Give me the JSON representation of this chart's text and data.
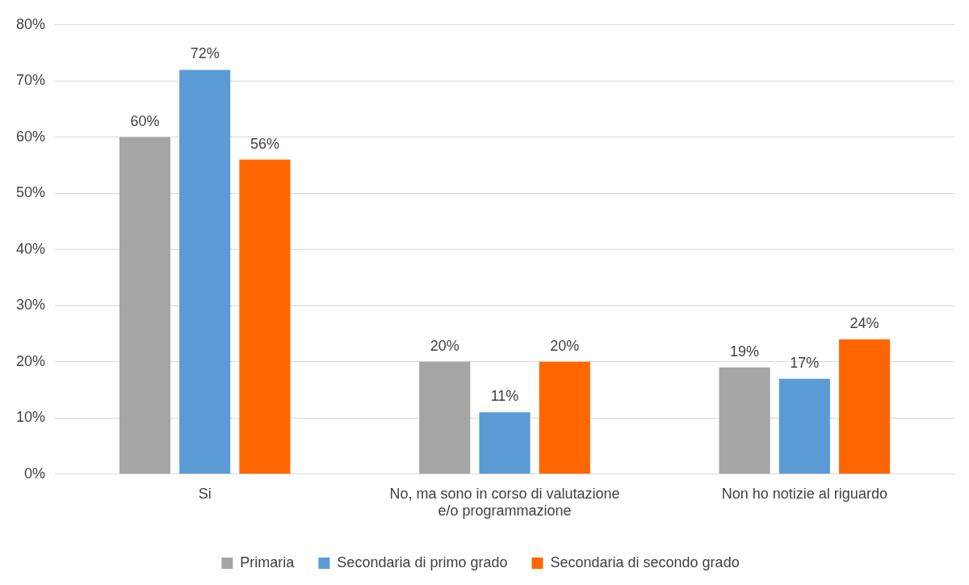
{
  "chart_data": {
    "type": "bar",
    "categories": [
      "Si",
      "No, ma sono in corso di valutazione e/o programmazione",
      "Non ho notizie al riguardo"
    ],
    "series": [
      {
        "name": "Primaria",
        "color": "#a5a5a5",
        "values": [
          60,
          20,
          19
        ],
        "value_labels": [
          "60%",
          "20%",
          "19%"
        ]
      },
      {
        "name": "Secondaria di primo grado",
        "color": "#5b9bd5",
        "values": [
          72,
          11,
          17
        ],
        "value_labels": [
          "72%",
          "11%",
          "17%"
        ]
      },
      {
        "name": "Secondaria di secondo grado",
        "color": "#ff6600",
        "values": [
          56,
          20,
          24
        ],
        "value_labels": [
          "56%",
          "20%",
          "24%"
        ]
      }
    ],
    "ylim": [
      0,
      80
    ],
    "yticks": [
      {
        "value": 0,
        "label": "0%"
      },
      {
        "value": 10,
        "label": "10%"
      },
      {
        "value": 20,
        "label": "20%"
      },
      {
        "value": 30,
        "label": "30%"
      },
      {
        "value": 40,
        "label": "40%"
      },
      {
        "value": 50,
        "label": "50%"
      },
      {
        "value": 60,
        "label": "60%"
      },
      {
        "value": 70,
        "label": "70%"
      },
      {
        "value": 80,
        "label": "80%"
      }
    ],
    "grid": "y",
    "legend": "bottom"
  }
}
